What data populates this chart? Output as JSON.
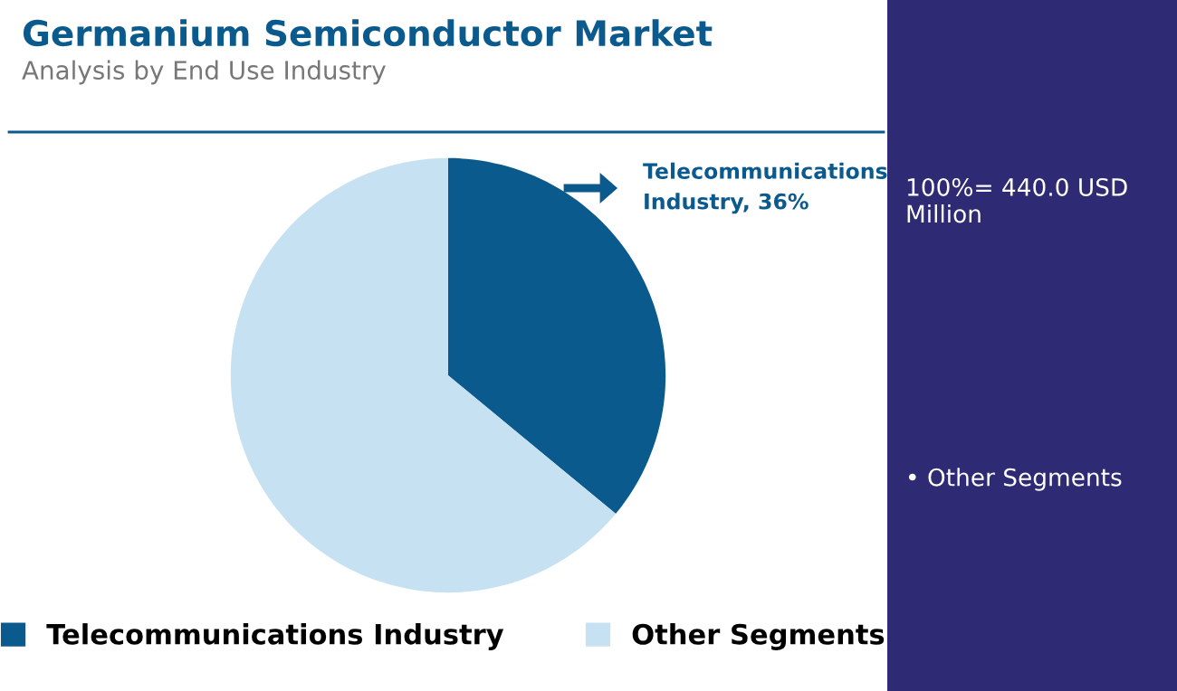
{
  "chart_data": {
    "type": "pie",
    "title": "Germanium Semiconductor Market",
    "subtitle": "Analysis by End Use Industry",
    "categories": [
      "Telecommunications Industry",
      "Other Segments"
    ],
    "values": [
      36,
      64
    ],
    "colors": [
      "#0b5a8e",
      "#c6e1f2"
    ],
    "value_labels": [
      "Telecommunications Industry, 36%",
      null
    ],
    "annotations": [
      "100%= 440.0 USD Million",
      "• Other Segments"
    ],
    "legend": "bottom"
  }
}
